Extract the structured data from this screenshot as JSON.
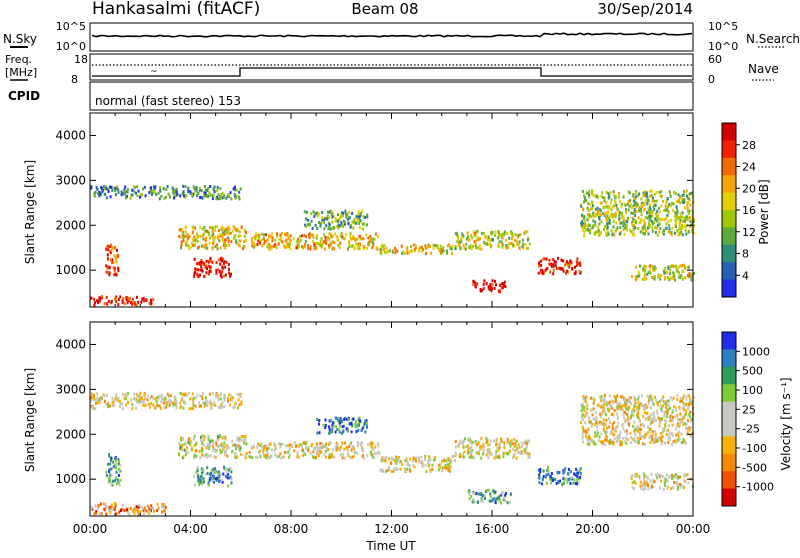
{
  "header": {
    "station": "Hankasalmi (fitACF)",
    "beam": "Beam 08",
    "date": "30/Sep/2014"
  },
  "top_panels": {
    "nsky_label": "N.Sky",
    "nsky_ticks": [
      "10^5",
      "10^0"
    ],
    "nsearch_label": "N.Search",
    "nsearch_ticks": [
      "10^5",
      "10^0"
    ],
    "freq_label": "Freq.",
    "freq_unit": "[MHz]",
    "freq_ticks": [
      "18",
      "8"
    ],
    "nave_label": "Nave",
    "nave_ticks": [
      "60",
      "0"
    ],
    "cpid_label": "CPID",
    "cpid_text": "normal (fast stereo) 153"
  },
  "chart_data": [
    {
      "type": "heatmap",
      "name": "power",
      "ylabel": "Slant Range [km]",
      "xlabel": "",
      "yticks": [
        1000,
        2000,
        3000,
        4000
      ],
      "ylim": [
        180,
        4500
      ],
      "xlim": [
        0,
        24
      ],
      "colorbar_label": "Power [dB]",
      "colorbar_ticks": [
        "28",
        "24",
        "20",
        "16",
        "12",
        "8",
        "4"
      ],
      "colorbar_colors": [
        "#d40000",
        "#f02000",
        "#f56a00",
        "#f7a300",
        "#e3cf00",
        "#a0c800",
        "#5caa3c",
        "#2f8c78",
        "#2a5fb0",
        "#1f2ee8"
      ],
      "bands": [
        {
          "x": [
            0.0,
            6.0
          ],
          "y": [
            2620,
            2900
          ],
          "level": 0.25
        },
        {
          "x": [
            3.5,
            6.2
          ],
          "y": [
            1500,
            2000
          ],
          "level": 0.55
        },
        {
          "x": [
            4.1,
            5.6
          ],
          "y": [
            880,
            1300
          ],
          "level": 0.95
        },
        {
          "x": [
            6.3,
            11.5
          ],
          "y": [
            1500,
            1850
          ],
          "level": 0.6
        },
        {
          "x": [
            8.5,
            11.0
          ],
          "y": [
            1950,
            2350
          ],
          "level": 0.35
        },
        {
          "x": [
            11.5,
            14.5
          ],
          "y": [
            1400,
            1600
          ],
          "level": 0.55
        },
        {
          "x": [
            14.5,
            17.5
          ],
          "y": [
            1500,
            1900
          ],
          "level": 0.5
        },
        {
          "x": [
            15.2,
            16.5
          ],
          "y": [
            550,
            800
          ],
          "level": 0.95
        },
        {
          "x": [
            17.8,
            19.5
          ],
          "y": [
            950,
            1300
          ],
          "level": 0.9
        },
        {
          "x": [
            19.5,
            24.0
          ],
          "y": [
            1800,
            2800
          ],
          "level": 0.45
        },
        {
          "x": [
            0.0,
            2.5
          ],
          "y": [
            250,
            450
          ],
          "level": 0.9
        },
        {
          "x": [
            0.6,
            1.1
          ],
          "y": [
            900,
            1600
          ],
          "level": 0.85
        },
        {
          "x": [
            21.5,
            24.0
          ],
          "y": [
            800,
            1150
          ],
          "level": 0.5
        }
      ]
    },
    {
      "type": "heatmap",
      "name": "velocity",
      "ylabel": "Slant Range [km]",
      "xlabel": "Time UT",
      "yticks": [
        1000,
        2000,
        3000,
        4000
      ],
      "ylim": [
        180,
        4500
      ],
      "xlim": [
        0,
        24
      ],
      "xticks": [
        "00:00",
        "04:00",
        "08:00",
        "12:00",
        "16:00",
        "20:00",
        "00:00"
      ],
      "colorbar_label": "Velocity [m s⁻¹]",
      "colorbar_ticks": [
        "1000",
        "500",
        "100",
        "25",
        "-25",
        "-100",
        "-500",
        "-1000"
      ],
      "colorbar_colors": [
        "#1f2ee8",
        "#2f7ec0",
        "#2f9a5a",
        "#7ccc3a",
        "#c8c8c0",
        "#c8c8c0",
        "#f7b000",
        "#f58a00",
        "#f05000",
        "#d40000"
      ],
      "bands": [
        {
          "x": [
            0.0,
            6.0
          ],
          "y": [
            2600,
            2950
          ],
          "level": 0.45
        },
        {
          "x": [
            3.5,
            6.2
          ],
          "y": [
            1500,
            2000
          ],
          "level": 0.5
        },
        {
          "x": [
            4.1,
            5.6
          ],
          "y": [
            880,
            1300
          ],
          "level": 0.72
        },
        {
          "x": [
            6.3,
            11.5
          ],
          "y": [
            1500,
            1850
          ],
          "level": 0.45
        },
        {
          "x": [
            9.0,
            11.0
          ],
          "y": [
            2050,
            2400
          ],
          "level": 0.85
        },
        {
          "x": [
            11.5,
            14.5
          ],
          "y": [
            1200,
            1550
          ],
          "level": 0.45
        },
        {
          "x": [
            14.5,
            17.5
          ],
          "y": [
            1500,
            1950
          ],
          "level": 0.45
        },
        {
          "x": [
            15.0,
            16.8
          ],
          "y": [
            500,
            800
          ],
          "level": 0.72
        },
        {
          "x": [
            17.8,
            19.5
          ],
          "y": [
            900,
            1300
          ],
          "level": 0.78
        },
        {
          "x": [
            19.5,
            24.0
          ],
          "y": [
            1800,
            2900
          ],
          "level": 0.45
        },
        {
          "x": [
            0.0,
            3.0
          ],
          "y": [
            250,
            500
          ],
          "level": 0.3
        },
        {
          "x": [
            0.6,
            1.2
          ],
          "y": [
            900,
            1600
          ],
          "level": 0.7
        },
        {
          "x": [
            21.5,
            24.0
          ],
          "y": [
            800,
            1150
          ],
          "level": 0.45
        }
      ]
    }
  ]
}
